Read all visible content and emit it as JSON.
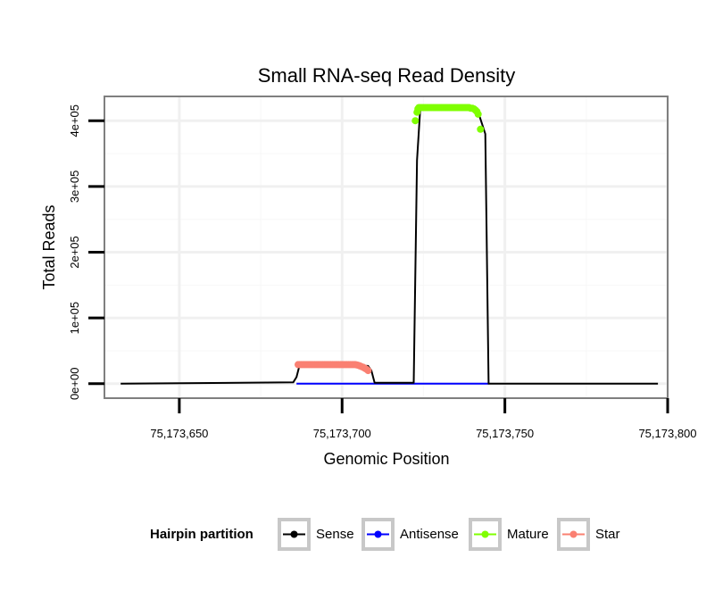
{
  "chart_data": {
    "type": "line",
    "title": "Small RNA-seq Read Density",
    "xlabel": "Genomic Position",
    "ylabel": "Total Reads",
    "xlim": [
      75173627,
      75173800
    ],
    "ylim": [
      -22000,
      437000
    ],
    "x_ticks": [
      75173650,
      75173700,
      75173750,
      75173800
    ],
    "x_tick_labels": [
      "75,173,650",
      "75,173,700",
      "75,173,750",
      "75,173,800"
    ],
    "y_ticks": [
      0,
      100000,
      200000,
      300000,
      400000
    ],
    "y_tick_labels": [
      "0e+00",
      "1e+05",
      "2e+05",
      "3e+05",
      "4e+05"
    ],
    "legend": {
      "title": "Hairpin partition",
      "position": "bottom",
      "items": [
        {
          "name": "Sense",
          "color": "#000000"
        },
        {
          "name": "Antisense",
          "color": "#0000ff"
        },
        {
          "name": "Mature",
          "color": "#7fff00"
        },
        {
          "name": "Star",
          "color": "#fa8072"
        }
      ]
    },
    "series": [
      {
        "name": "Sense",
        "color": "#000000",
        "kind": "line",
        "x": [
          75173632,
          75173685,
          75173686,
          75173687,
          75173708,
          75173709,
          75173710,
          75173722,
          75173723,
          75173724,
          75173741,
          75173742,
          75173743,
          75173744,
          75173745,
          75173797
        ],
        "y": [
          0,
          2000,
          10000,
          29000,
          27000,
          20000,
          1500,
          1500,
          340000,
          418000,
          418000,
          410000,
          395000,
          380000,
          0,
          0
        ]
      },
      {
        "name": "Antisense",
        "color": "#0000ff",
        "kind": "line",
        "x": [
          75173686,
          75173745
        ],
        "y": [
          0,
          0
        ]
      },
      {
        "name": "Mature",
        "color": "#7fff00",
        "kind": "points",
        "x": [
          75173722.5,
          75173723,
          75173723.3,
          75173723.6,
          75173724,
          75173724.5,
          75173725,
          75173725.5,
          75173726,
          75173726.5,
          75173727,
          75173727.5,
          75173728,
          75173728.5,
          75173729,
          75173729.5,
          75173730,
          75173730.5,
          75173731,
          75173731.5,
          75173732,
          75173732.5,
          75173733,
          75173733.5,
          75173734,
          75173734.5,
          75173735,
          75173735.5,
          75173736,
          75173736.5,
          75173737,
          75173737.5,
          75173738,
          75173738.5,
          75173739,
          75173739.5,
          75173740,
          75173740.5,
          75173741,
          75173741.4,
          75173741.8,
          75173742.5
        ],
        "y": [
          400000,
          413000,
          418000,
          420000,
          420000,
          420000,
          420000,
          420000,
          420000,
          420000,
          420000,
          420000,
          420000,
          420000,
          420000,
          420000,
          420000,
          420000,
          420000,
          420000,
          420000,
          420000,
          420000,
          420000,
          420000,
          420000,
          420000,
          420000,
          420000,
          420000,
          420000,
          420000,
          420000,
          420000,
          420000,
          419000,
          419000,
          418000,
          416000,
          414000,
          410000,
          387000
        ]
      },
      {
        "name": "Star",
        "color": "#fa8072",
        "kind": "points",
        "x": [
          75173686.5,
          75173687,
          75173687.5,
          75173688,
          75173688.5,
          75173689,
          75173689.5,
          75173690,
          75173690.5,
          75173691,
          75173691.5,
          75173692,
          75173692.5,
          75173693,
          75173693.5,
          75173694,
          75173694.5,
          75173695,
          75173695.5,
          75173696,
          75173696.5,
          75173697,
          75173697.5,
          75173698,
          75173698.5,
          75173699,
          75173699.5,
          75173700,
          75173700.5,
          75173701,
          75173701.5,
          75173702,
          75173702.5,
          75173703,
          75173703.5,
          75173704,
          75173704.5,
          75173705,
          75173705.5,
          75173706,
          75173706.5,
          75173707,
          75173707.5,
          75173708
        ],
        "y": [
          29000,
          29000,
          29000,
          29000,
          29000,
          29000,
          29000,
          29000,
          29000,
          29000,
          29000,
          29000,
          29000,
          29000,
          29000,
          29000,
          29000,
          29000,
          29000,
          29000,
          29000,
          29000,
          29000,
          29000,
          29000,
          29000,
          29000,
          29000,
          29000,
          29000,
          29000,
          29000,
          29000,
          29000,
          29000,
          29000,
          28500,
          28000,
          27000,
          26000,
          25000,
          23500,
          22000,
          20000
        ]
      }
    ]
  }
}
